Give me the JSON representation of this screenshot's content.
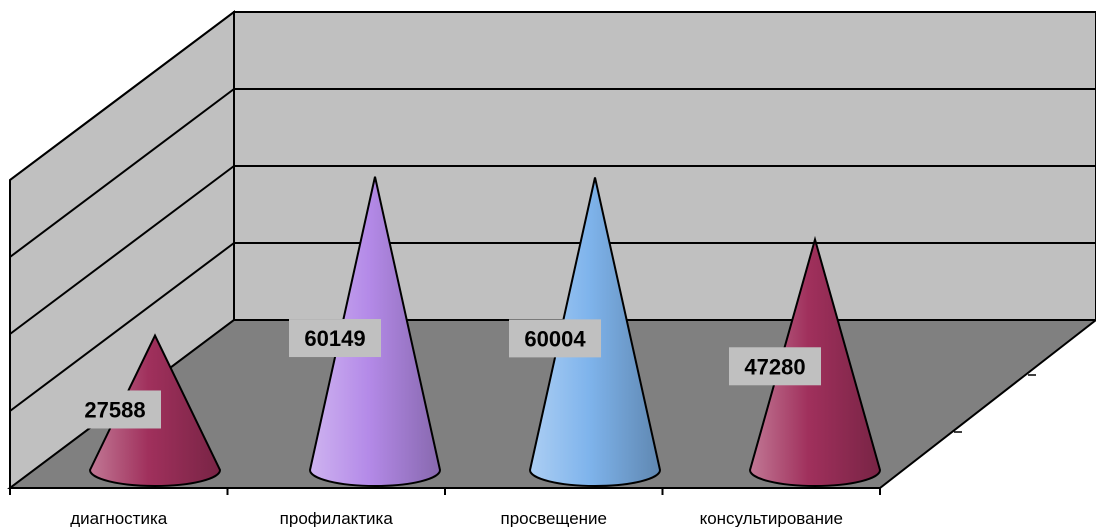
{
  "chart_data": {
    "type": "bar",
    "style": "3d-cone",
    "title": "",
    "xlabel": "",
    "ylabel": "",
    "categories": [
      "диагностика",
      "профилактика",
      "просвещение",
      "консультирование"
    ],
    "values": [
      27588,
      60149,
      60004,
      47280
    ],
    "data_labels": [
      "27588",
      "60149",
      "60004",
      "47280"
    ],
    "ylim": [
      0,
      80000
    ],
    "grid": true,
    "legend": "none",
    "colors": [
      "#a0305c",
      "#b48ae8",
      "#7fb4ec",
      "#a0305c"
    ]
  },
  "colors": {
    "wall": "#c0c0c0",
    "floor": "#808080",
    "axis": "#000000",
    "label_bg": "#c0c0c0"
  }
}
